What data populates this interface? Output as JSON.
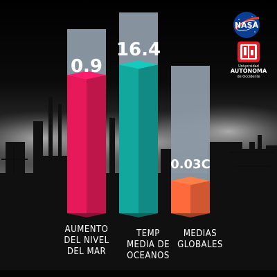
{
  "chart_data": {
    "type": "bar",
    "categories": [
      "AUMENTO\nDEL NIVEL\nDEL MAR",
      "TEMP\nMEDIA DE\nOCEANOS",
      "MEDIAS\nGLOBALES"
    ],
    "data_labels": [
      "0.9",
      "16.4",
      "0.03C"
    ],
    "fill_fraction": [
      0.75,
      0.74,
      0.22
    ],
    "colors": [
      "#e8195a",
      "#13a89e",
      "#ff6a3d"
    ],
    "track_color": "#8d9aa6",
    "grid": false,
    "legend": "none"
  },
  "logos": {
    "nasa": {
      "text": "NASA",
      "color": "#0b3d91",
      "accent": "#fc3d21"
    },
    "uao": {
      "line1": "Universidad",
      "line2": "AUTÓNOMA",
      "line3": "de Occidente",
      "color": "#e31e24"
    }
  }
}
